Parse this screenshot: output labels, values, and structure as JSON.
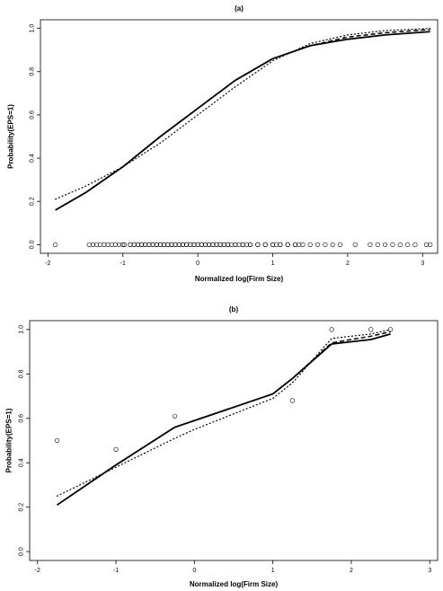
{
  "chart_data": [
    {
      "type": "line",
      "title": "(a)",
      "xlabel": "Normalized log(Firm Size)",
      "ylabel": "Probability(EPS=1)",
      "xlim": [
        -2.1,
        3.2
      ],
      "ylim": [
        -0.04,
        1.04
      ],
      "xticks": [
        "-2",
        "-1",
        "0",
        "1",
        "2",
        "3"
      ],
      "yticks": [
        "0.0",
        "0.2",
        "0.4",
        "0.6",
        "0.8",
        "1.0"
      ],
      "grid": false,
      "series": [
        {
          "style": "solid",
          "x": [
            -1.9,
            -1.5,
            -1.0,
            -0.5,
            0.0,
            0.5,
            1.0,
            1.5,
            2.0,
            2.5,
            3.1
          ],
          "y": [
            0.16,
            0.24,
            0.36,
            0.5,
            0.63,
            0.76,
            0.86,
            0.92,
            0.95,
            0.97,
            0.985
          ]
        },
        {
          "style": "dashed",
          "x": [
            -1.9,
            -1.5,
            -1.0,
            -0.5,
            0.0,
            0.5,
            1.0,
            1.5,
            2.0,
            2.5,
            3.1
          ],
          "y": [
            0.16,
            0.24,
            0.36,
            0.5,
            0.63,
            0.76,
            0.86,
            0.92,
            0.96,
            0.98,
            0.995
          ]
        },
        {
          "style": "dotted",
          "x": [
            -1.9,
            -1.5,
            -1.0,
            -0.5,
            0.0,
            0.5,
            1.0,
            1.5,
            2.0,
            2.5,
            3.1
          ],
          "y": [
            0.21,
            0.27,
            0.36,
            0.47,
            0.6,
            0.73,
            0.85,
            0.93,
            0.97,
            0.99,
            1.0
          ]
        },
        {
          "style": "open-circles",
          "x": [
            -1.9,
            -1.45,
            -1.35,
            -1.25,
            -1.15,
            -1.05,
            -0.98,
            -0.9,
            -0.85,
            -0.8,
            -0.75,
            -0.7,
            -0.65,
            -0.6,
            -0.55,
            -0.5,
            -0.45,
            -0.4,
            -0.35,
            -0.3,
            -0.25,
            -0.2,
            -0.15,
            -0.1,
            -0.05,
            0.0,
            0.05,
            0.1,
            0.15,
            0.2,
            0.25,
            0.3,
            0.35,
            0.4,
            0.45,
            0.5,
            0.55,
            0.6,
            0.65,
            0.7,
            0.8,
            0.9,
            1.0,
            1.05,
            1.1,
            1.2,
            1.3,
            1.4,
            1.5,
            1.6,
            1.7,
            1.8,
            1.9,
            2.1,
            2.3,
            2.4,
            2.5,
            2.6,
            2.7,
            2.8,
            2.9,
            3.05,
            3.1
          ],
          "y": [
            0,
            0,
            0,
            0,
            0,
            0,
            0,
            0,
            0,
            0,
            0,
            0,
            0,
            0,
            0,
            0,
            0,
            0,
            0,
            0,
            0,
            0,
            0,
            0,
            0,
            0,
            0,
            0,
            0,
            0,
            0,
            0,
            0,
            0,
            0,
            0,
            0,
            0,
            0,
            0,
            0,
            0,
            0,
            0,
            0,
            0,
            0,
            0,
            0,
            0,
            0,
            0,
            0,
            0,
            0,
            0,
            0,
            0,
            0,
            0,
            0,
            0,
            0
          ]
        },
        {
          "style": "open-circles",
          "x": [
            -1.4,
            -1.3,
            -1.2,
            -1.1,
            -1.0,
            -0.9,
            -0.85,
            -0.8,
            -0.75,
            -0.7,
            -0.65,
            -0.6,
            -0.55,
            -0.5,
            -0.45,
            -0.4,
            -0.35,
            -0.3,
            -0.25,
            -0.2,
            -0.15,
            -0.1,
            -0.05,
            0.0,
            0.05,
            0.1,
            0.15,
            0.2,
            0.25,
            0.3,
            0.35,
            0.4,
            0.5,
            0.6,
            0.7,
            0.8,
            0.9,
            1.0,
            1.1,
            1.2,
            1.3,
            1.35
          ],
          "y": [
            0,
            0,
            0,
            0,
            0,
            0,
            0,
            0,
            0,
            0,
            0,
            0,
            0,
            0,
            0,
            0,
            0,
            0,
            0,
            0,
            0,
            0,
            0,
            0,
            0,
            0,
            0,
            0,
            0,
            0,
            0,
            0,
            0,
            0,
            0,
            0,
            0,
            0,
            0,
            0,
            0,
            0
          ]
        }
      ]
    },
    {
      "type": "line",
      "title": "(b)",
      "xlabel": "Normalized log(Firm Size)",
      "ylabel": "Probability(EPS=1)",
      "xlim": [
        -2.1,
        3.1
      ],
      "ylim": [
        -0.04,
        1.04
      ],
      "xticks": [
        "-2",
        "-1",
        "0",
        "1",
        "2",
        "3"
      ],
      "yticks": [
        "0.0",
        "0.2",
        "0.4",
        "0.6",
        "0.8",
        "1.0"
      ],
      "grid": false,
      "series": [
        {
          "style": "solid",
          "x": [
            -1.75,
            -1.0,
            -0.25,
            0.0,
            0.5,
            1.0,
            1.25,
            1.75,
            2.25,
            2.5
          ],
          "y": [
            0.21,
            0.39,
            0.56,
            0.59,
            0.65,
            0.71,
            0.78,
            0.935,
            0.955,
            0.98
          ]
        },
        {
          "style": "dashed",
          "x": [
            -1.75,
            -1.0,
            -0.25,
            0.0,
            0.5,
            1.0,
            1.25,
            1.75,
            2.25,
            2.5
          ],
          "y": [
            0.21,
            0.39,
            0.56,
            0.59,
            0.65,
            0.71,
            0.78,
            0.94,
            0.97,
            0.99
          ]
        },
        {
          "style": "dotted",
          "x": [
            -1.75,
            -1.0,
            -0.25,
            0.0,
            0.5,
            1.0,
            1.25,
            1.75,
            2.25,
            2.5
          ],
          "y": [
            0.25,
            0.38,
            0.51,
            0.55,
            0.62,
            0.69,
            0.76,
            0.96,
            0.98,
            1.0
          ]
        },
        {
          "style": "open-circles",
          "x": [
            -1.75,
            -1.0,
            -0.25,
            1.25,
            1.75,
            2.25,
            2.5
          ],
          "y": [
            0.5,
            0.46,
            0.61,
            0.68,
            1.0,
            1.0,
            1.0
          ]
        }
      ]
    }
  ]
}
